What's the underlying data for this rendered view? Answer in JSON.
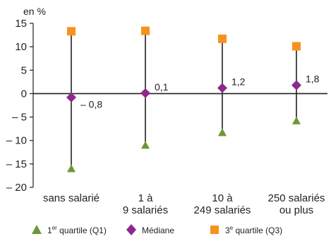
{
  "chart_data": {
    "type": "scatter",
    "ylabel": "en %",
    "ylim": [
      -20,
      15
    ],
    "yticks": [
      15,
      10,
      5,
      0,
      -5,
      -10,
      -15,
      -20
    ],
    "ytick_labels": [
      "15",
      "10",
      "5",
      "0",
      "– 5",
      "– 10",
      "– 15",
      "– 20"
    ],
    "categories": [
      [
        "sans salarié"
      ],
      [
        "1 à",
        "9 salariés"
      ],
      [
        "10 à",
        "249 salariés"
      ],
      [
        "250 salariés",
        "ou plus"
      ]
    ],
    "series": [
      {
        "name_parts": [
          "1",
          "er",
          " quartile (Q1)"
        ],
        "marker": "triangle",
        "color": "#6a9a34",
        "values": [
          -16.0,
          -11.0,
          -8.3,
          -5.8
        ]
      },
      {
        "name_parts": [
          "Médiane",
          "",
          ""
        ],
        "marker": "diamond",
        "color": "#8b2a8e",
        "values": [
          -0.8,
          0.1,
          1.2,
          1.8
        ]
      },
      {
        "name_parts": [
          "3",
          "e",
          " quartile (Q3)"
        ],
        "marker": "square",
        "color": "#f7921e",
        "values": [
          13.3,
          13.4,
          11.7,
          10.1
        ]
      }
    ],
    "median_labels": [
      "– 0,8",
      "0,1",
      "1,2",
      "1,8"
    ],
    "grid": false,
    "legend": "bottom"
  }
}
